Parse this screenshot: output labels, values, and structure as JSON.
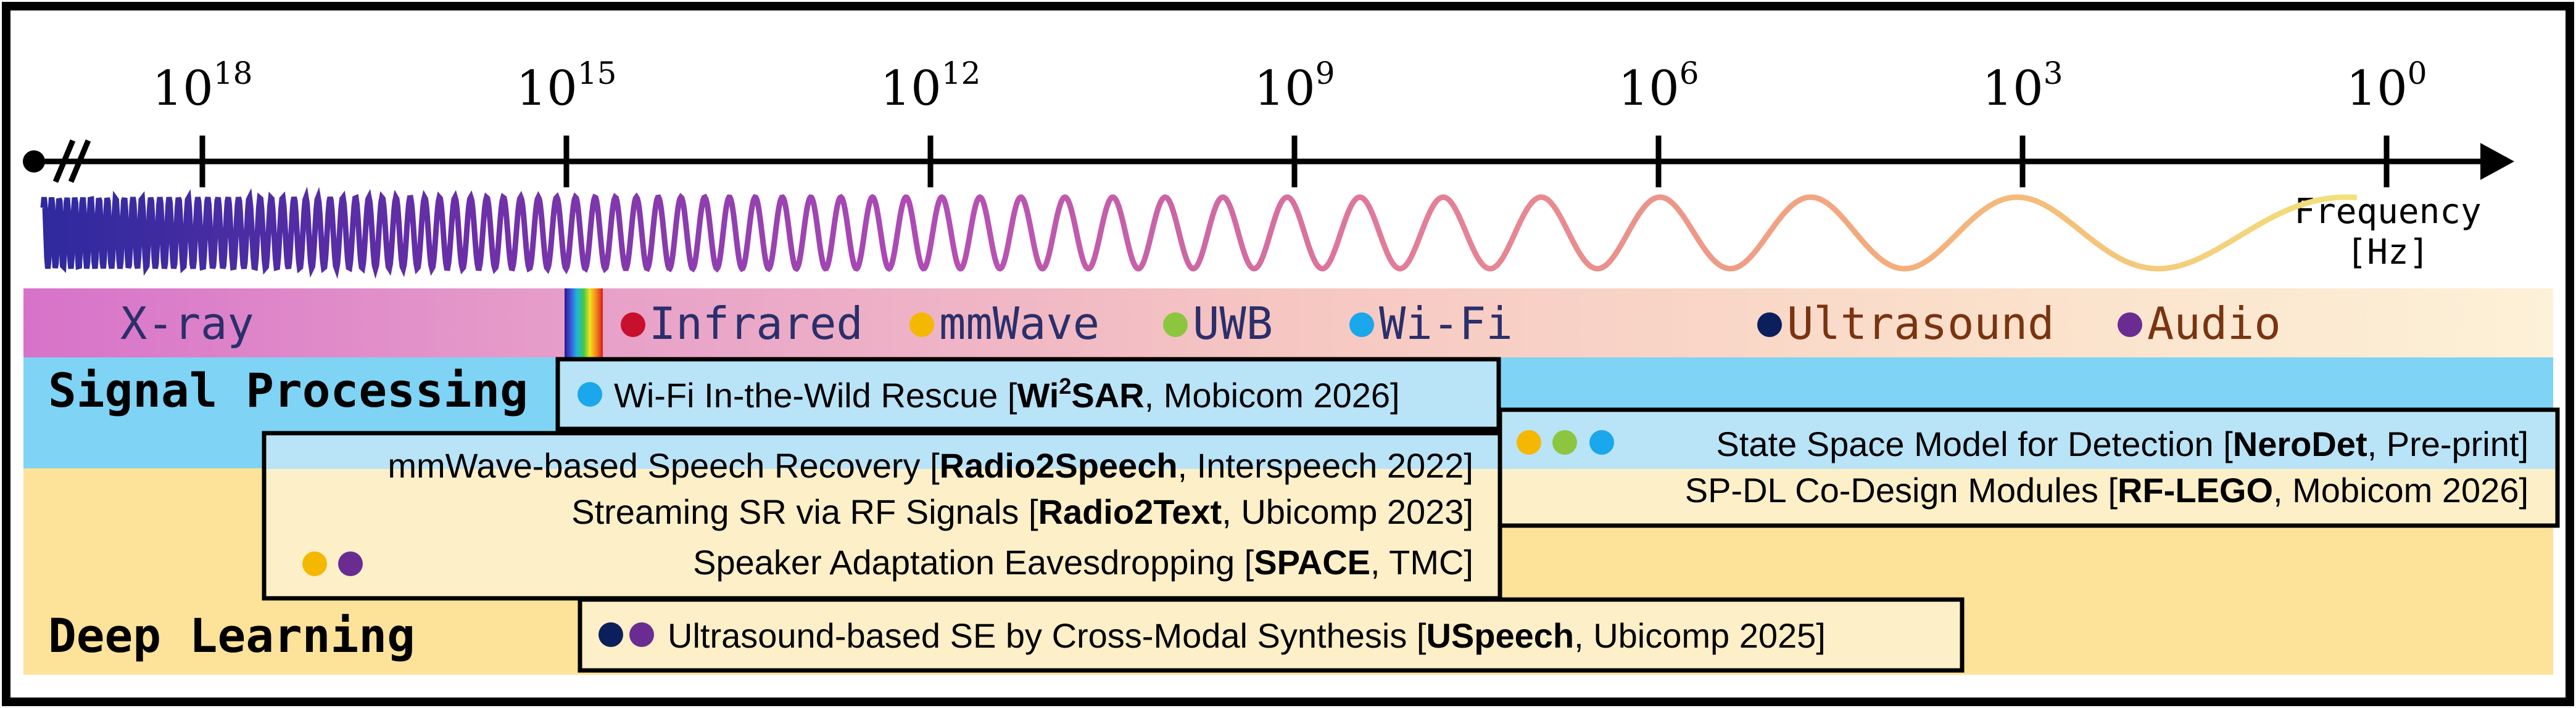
{
  "axis": {
    "ticks": [
      {
        "base": "10",
        "exp": "18"
      },
      {
        "base": "10",
        "exp": "15"
      },
      {
        "base": "10",
        "exp": "12"
      },
      {
        "base": "10",
        "exp": "9"
      },
      {
        "base": "10",
        "exp": "6"
      },
      {
        "base": "10",
        "exp": "3"
      },
      {
        "base": "10",
        "exp": "0"
      }
    ],
    "label_line1": "Frequency",
    "label_line2": "[Hz]"
  },
  "bands": {
    "xray": "X-ray",
    "infrared": "Infrared",
    "mmwave": "mmWave",
    "uwb": "UWB",
    "wifi": "Wi-Fi",
    "ultrasound": "Ultrasound",
    "audio": "Audio"
  },
  "regions": {
    "signal_processing": "Signal Processing",
    "deep_learning": "Deep Learning"
  },
  "colors": {
    "infrared": "#c8102e",
    "mmwave": "#f5b800",
    "uwb": "#8cc63f",
    "wifi": "#1aa7ec",
    "ultrasound": "#0a1f5c",
    "audio": "#6a2c91"
  },
  "works": {
    "wi2sar": {
      "pre": "Wi-Fi In-the-Wild Rescue [",
      "name": "Wi",
      "sup": "2",
      "name2": "SAR",
      "post": ", Mobicom 2026]"
    },
    "radio2speech": {
      "pre": "mmWave-based Speech Recovery [",
      "name": "Radio2Speech",
      "post": ", Interspeech 2022]"
    },
    "radio2text": {
      "pre": "Streaming SR via RF Signals [",
      "name": "Radio2Text",
      "post": ", Ubicomp 2023]"
    },
    "space": {
      "pre": "Speaker Adaptation Eavesdropping [",
      "name": "SPACE",
      "post": ", TMC]"
    },
    "nerodet": {
      "pre": "State Space Model for Detection [",
      "name": "NeroDet",
      "post": ", Pre-print]"
    },
    "rflego": {
      "pre": "SP-DL Co-Design Modules [",
      "name": "RF-LEGO",
      "post": ", Mobicom 2026]"
    },
    "uspeech": {
      "pre": "Ultrasound-based SE by Cross-Modal Synthesis [",
      "name": "USpeech",
      "post": ", Ubicomp 2025]"
    }
  }
}
